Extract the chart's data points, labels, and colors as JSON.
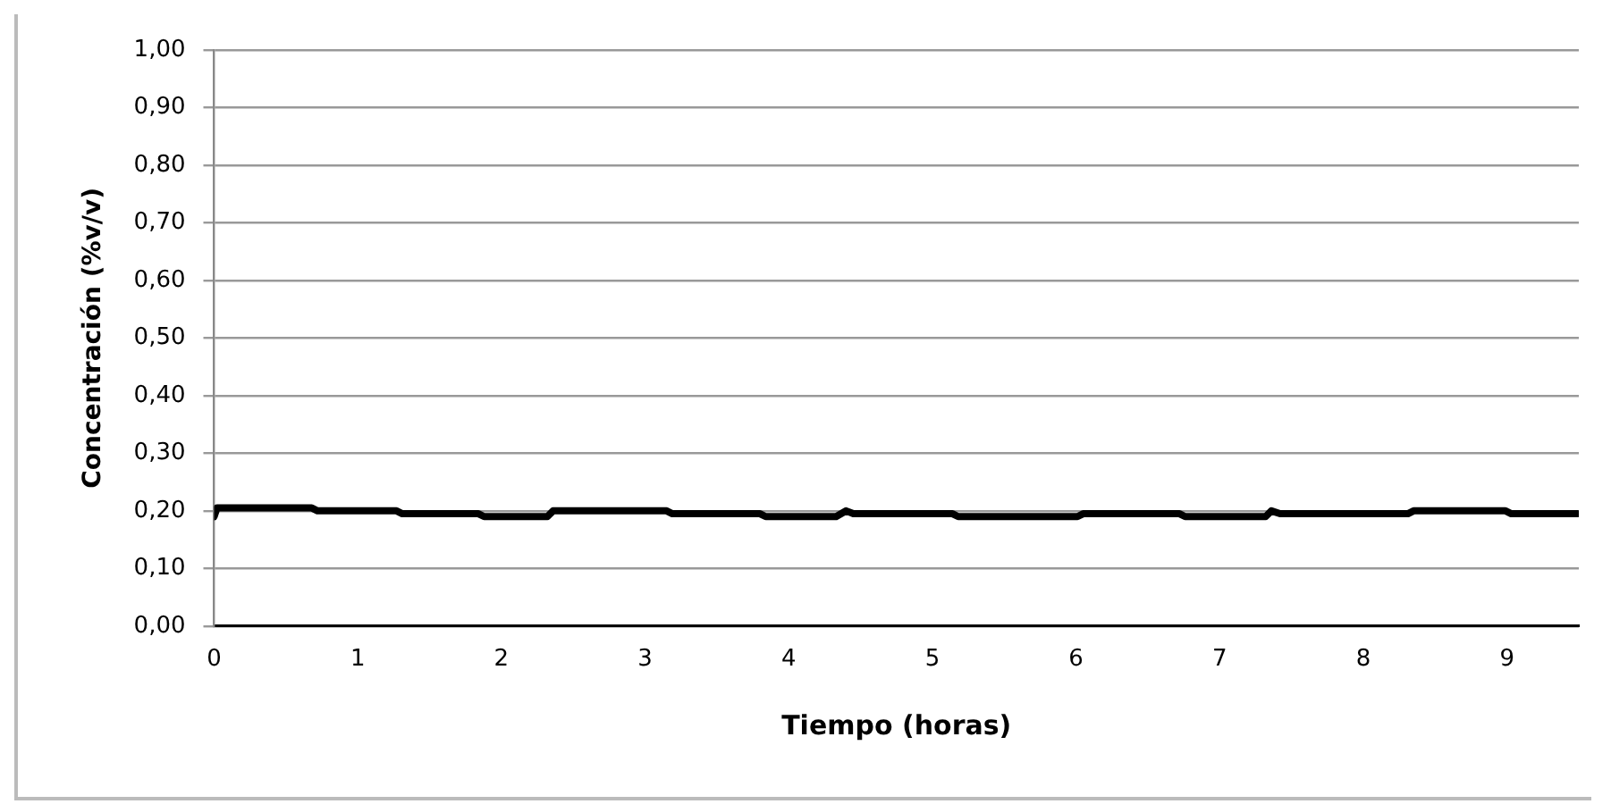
{
  "chart_data": {
    "type": "line",
    "xlabel": "Tiempo (horas)",
    "ylabel": "Concentración (%v/v)",
    "series": [
      {
        "color": "#000000",
        "x": [
          0,
          0.02,
          0.68,
          0.72,
          1.27,
          1.31,
          1.84,
          1.88,
          2.32,
          2.36,
          3.15,
          3.19,
          3.8,
          3.84,
          4.33,
          4.4,
          4.45,
          5.14,
          5.18,
          6.01,
          6.05,
          6.72,
          6.76,
          7.32,
          7.36,
          7.42,
          8.31,
          8.35,
          8.99,
          9.03,
          9.49
        ],
        "values": [
          0.19,
          0.205,
          0.205,
          0.2,
          0.2,
          0.195,
          0.195,
          0.19,
          0.19,
          0.2,
          0.2,
          0.195,
          0.195,
          0.19,
          0.19,
          0.2,
          0.195,
          0.195,
          0.19,
          0.19,
          0.195,
          0.195,
          0.19,
          0.19,
          0.2,
          0.195,
          0.195,
          0.2,
          0.2,
          0.195,
          0.195
        ]
      }
    ],
    "xlim": [
      0,
      9.5
    ],
    "xticks": [
      0,
      1,
      2,
      3,
      4,
      5,
      6,
      7,
      8,
      9
    ],
    "ylim": [
      0,
      1
    ],
    "yticks": [
      {
        "value": 0,
        "label": "0,00"
      },
      {
        "value": 0.1,
        "label": "0,10"
      },
      {
        "value": 0.2,
        "label": "0,20"
      },
      {
        "value": 0.3,
        "label": "0,30"
      },
      {
        "value": 0.4,
        "label": "0,40"
      },
      {
        "value": 0.5,
        "label": "0,50"
      },
      {
        "value": 0.6,
        "label": "0,60"
      },
      {
        "value": 0.7,
        "label": "0,70"
      },
      {
        "value": 0.8,
        "label": "0,80"
      },
      {
        "value": 0.9,
        "label": "0,90"
      },
      {
        "value": 1,
        "label": "1,00"
      }
    ],
    "grid": "y",
    "legend": false,
    "marker": "none",
    "line_style": "solid"
  }
}
